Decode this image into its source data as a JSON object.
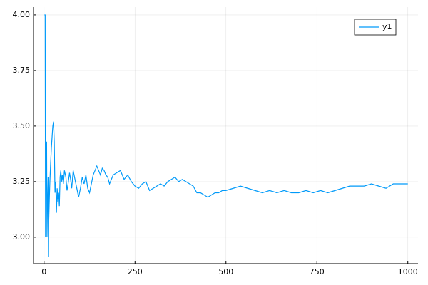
{
  "chart_data": {
    "type": "line",
    "x": [
      1,
      2,
      3,
      4,
      5,
      6,
      7,
      8,
      9,
      10,
      11,
      12,
      13,
      14,
      15,
      16,
      18,
      20,
      22,
      24,
      26,
      28,
      30,
      32,
      34,
      36,
      38,
      40,
      42,
      44,
      46,
      48,
      50,
      53,
      56,
      60,
      63,
      66,
      70,
      73,
      76,
      80,
      85,
      90,
      95,
      100,
      105,
      110,
      115,
      120,
      125,
      130,
      135,
      140,
      145,
      150,
      155,
      160,
      165,
      170,
      175,
      180,
      190,
      200,
      210,
      220,
      230,
      240,
      250,
      260,
      270,
      280,
      290,
      300,
      310,
      320,
      330,
      340,
      350,
      360,
      370,
      380,
      390,
      400,
      410,
      420,
      430,
      440,
      450,
      460,
      470,
      480,
      490,
      500,
      520,
      540,
      560,
      580,
      600,
      620,
      640,
      660,
      680,
      700,
      720,
      740,
      760,
      780,
      800,
      820,
      840,
      860,
      880,
      900,
      920,
      940,
      960,
      980,
      1000
    ],
    "series": [
      {
        "name": "y1",
        "color": "#009af9",
        "values": [
          4.0,
          4.0,
          4.0,
          3.0,
          3.2,
          3.33,
          3.43,
          3.0,
          3.11,
          3.2,
          3.27,
          2.91,
          3.08,
          3.14,
          3.2,
          3.25,
          3.33,
          3.4,
          3.45,
          3.5,
          3.52,
          3.43,
          3.2,
          3.25,
          3.11,
          3.22,
          3.16,
          3.2,
          3.14,
          3.27,
          3.3,
          3.25,
          3.28,
          3.24,
          3.3,
          3.27,
          3.21,
          3.24,
          3.29,
          3.26,
          3.22,
          3.3,
          3.26,
          3.22,
          3.18,
          3.22,
          3.27,
          3.24,
          3.28,
          3.22,
          3.2,
          3.24,
          3.28,
          3.3,
          3.32,
          3.3,
          3.28,
          3.31,
          3.3,
          3.28,
          3.27,
          3.24,
          3.28,
          3.29,
          3.3,
          3.26,
          3.28,
          3.25,
          3.23,
          3.22,
          3.24,
          3.25,
          3.21,
          3.22,
          3.23,
          3.24,
          3.23,
          3.25,
          3.26,
          3.27,
          3.25,
          3.26,
          3.25,
          3.24,
          3.23,
          3.2,
          3.2,
          3.19,
          3.18,
          3.19,
          3.2,
          3.2,
          3.21,
          3.21,
          3.22,
          3.23,
          3.22,
          3.21,
          3.2,
          3.21,
          3.2,
          3.21,
          3.2,
          3.2,
          3.21,
          3.2,
          3.21,
          3.2,
          3.21,
          3.22,
          3.23,
          3.23,
          3.23,
          3.24,
          3.23,
          3.22,
          3.24,
          3.24,
          3.24
        ]
      }
    ],
    "xlim": [
      -29,
      1028
    ],
    "ylim": [
      2.881,
      4.035
    ],
    "xticks": [
      0,
      250,
      500,
      750,
      1000
    ],
    "yticks": [
      {
        "value": 3,
        "label": "3.00"
      },
      {
        "value": 3.25,
        "label": "3.25"
      },
      {
        "value": 3.5,
        "label": "3.50"
      },
      {
        "value": 3.75,
        "label": "3.75"
      },
      {
        "value": 4,
        "label": "4.00"
      }
    ],
    "grid": true,
    "legend": "top-right"
  }
}
